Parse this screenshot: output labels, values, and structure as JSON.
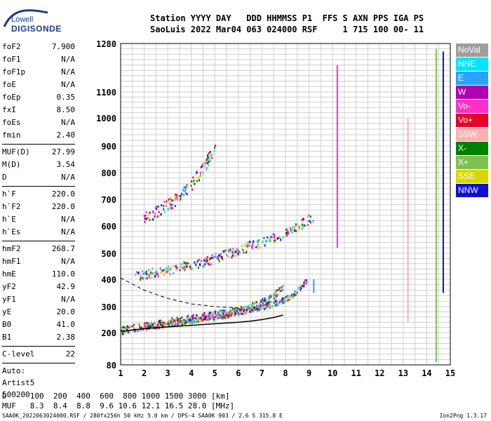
{
  "logo": {
    "word": "Lowell",
    "brand": "DIGISONDE"
  },
  "header": {
    "line1": "Station YYYY DAY   DDD HHMMSS P1  FFS S AXN PPS IGA PS",
    "line2": "SaoLuis 2022 Mar04 063 024000 RSF     1 715 100 00- 11"
  },
  "params": [
    [
      {
        "label": "foF2",
        "value": "7.900"
      },
      {
        "label": "foF1",
        "value": "N/A"
      },
      {
        "label": "foF1p",
        "value": "N/A"
      },
      {
        "label": "foE",
        "value": "N/A"
      },
      {
        "label": "foEp",
        "value": "0.35"
      },
      {
        "label": "fxI",
        "value": "8.50"
      },
      {
        "label": "foEs",
        "value": "N/A"
      },
      {
        "label": "fmin",
        "value": "2.40"
      }
    ],
    [
      {
        "label": "MUF(D)",
        "value": "27.99"
      },
      {
        "label": "M(D)",
        "value": "3.54"
      },
      {
        "label": "D",
        "value": "N/A"
      }
    ],
    [
      {
        "label": "h`F",
        "value": "220.0"
      },
      {
        "label": "h`F2",
        "value": "220.0"
      },
      {
        "label": "h`E",
        "value": "N/A"
      },
      {
        "label": "h`Es",
        "value": "N/A"
      }
    ],
    [
      {
        "label": "hmF2",
        "value": "268.7"
      },
      {
        "label": "hmF1",
        "value": "N/A"
      },
      {
        "label": "hmE",
        "value": "110.0"
      },
      {
        "label": "yF2",
        "value": "42.9"
      },
      {
        "label": "yF1",
        "value": "N/A"
      },
      {
        "label": "yE",
        "value": "20.0"
      },
      {
        "label": "B0",
        "value": "41.0"
      },
      {
        "label": "B1",
        "value": "2.38"
      }
    ],
    [
      {
        "label": "C-level",
        "value": "22"
      }
    ]
  ],
  "autoscaling": {
    "line1": "Auto:",
    "line2": "Artist5",
    "line3": "500200"
  },
  "footer": {
    "d_line": "D     100  200  400  600  800 1000 1500 3000 [km]",
    "muf_line": "MUF   8.3  8.4  8.8  9.6 10.6 12.1 16.5 28.0 [MHz]",
    "file_line": "SAA0K_2022063024000.RSF / 280fx256h 50 kHz 5.0 km / DPS-4 SAA0K 903 / 2.6 S 315.8 E",
    "version": "Ion2Png 1.3.17"
  },
  "legend": [
    {
      "name": "NoVal",
      "color": "#9e9e9e"
    },
    {
      "name": "NNE",
      "color": "#00e5ff"
    },
    {
      "name": "E",
      "color": "#29a3ff"
    },
    {
      "name": "W",
      "color": "#b000b0"
    },
    {
      "name": "Vo-",
      "color": "#ff30c8"
    },
    {
      "name": "Vo+",
      "color": "#e8002a"
    },
    {
      "name": "SSW",
      "color": "#ffb0b0"
    },
    {
      "name": "X-",
      "color": "#008000"
    },
    {
      "name": "X+",
      "color": "#7fc050"
    },
    {
      "name": "SSE",
      "color": "#d8d800"
    },
    {
      "name": "NNW",
      "color": "#1010d0"
    }
  ],
  "chart_data": {
    "type": "scatter",
    "title": "",
    "xlabel": "",
    "ylabel": "",
    "x_ticks": [
      1,
      2,
      3,
      4,
      5,
      6,
      7,
      8,
      9,
      10,
      11,
      12,
      13,
      14,
      15
    ],
    "y_ticks": [
      80,
      200,
      300,
      400,
      500,
      600,
      700,
      800,
      900,
      1000,
      1100,
      1280
    ],
    "xlim": [
      1,
      15
    ],
    "ylim": [
      80,
      1280
    ],
    "grid": true,
    "y_scale": "nonlinear (virtual height)",
    "traces": [
      {
        "name": "F2 ordinary trace",
        "x": [
          1.0,
          1.8,
          2.5,
          3.5,
          4.5,
          5.5,
          6.5,
          7.3,
          7.9
        ],
        "y": [
          210,
          225,
          235,
          250,
          265,
          280,
          300,
          330,
          380
        ]
      },
      {
        "name": "F2 extraordinary trace",
        "x": [
          2.0,
          3.0,
          4.0,
          5.0,
          6.0,
          7.0,
          8.0,
          8.5,
          8.9
        ],
        "y": [
          225,
          235,
          250,
          262,
          280,
          300,
          330,
          360,
          400
        ]
      },
      {
        "name": "2nd hop",
        "x": [
          1.6,
          2.5,
          3.5,
          4.5,
          5.5,
          6.5,
          7.5,
          8.5,
          9.2
        ],
        "y": [
          415,
          430,
          450,
          470,
          500,
          530,
          560,
          600,
          640
        ]
      },
      {
        "name": "3rd hop",
        "x": [
          1.9,
          2.6,
          3.3,
          4.0,
          4.5,
          5.0
        ],
        "y": [
          630,
          660,
          700,
          760,
          820,
          900
        ]
      },
      {
        "name": "Spread scatter",
        "x": [
          9.2,
          9.5,
          10.2,
          10.2,
          13.2,
          13.2,
          14.4,
          14.4,
          14.7,
          14.7
        ],
        "y": [
          350,
          400,
          520,
          1200,
          1000,
          240,
          90,
          1260,
          350,
          1250
        ]
      }
    ],
    "profile_curve": {
      "name": "Electron density profile",
      "x": [
        1.0,
        2.0,
        3.0,
        4.0,
        5.0,
        6.0,
        6.5,
        7.0,
        7.5,
        7.8,
        7.9
      ],
      "y": [
        205,
        215,
        222,
        228,
        234,
        240,
        244,
        250,
        258,
        265,
        268
      ]
    }
  }
}
